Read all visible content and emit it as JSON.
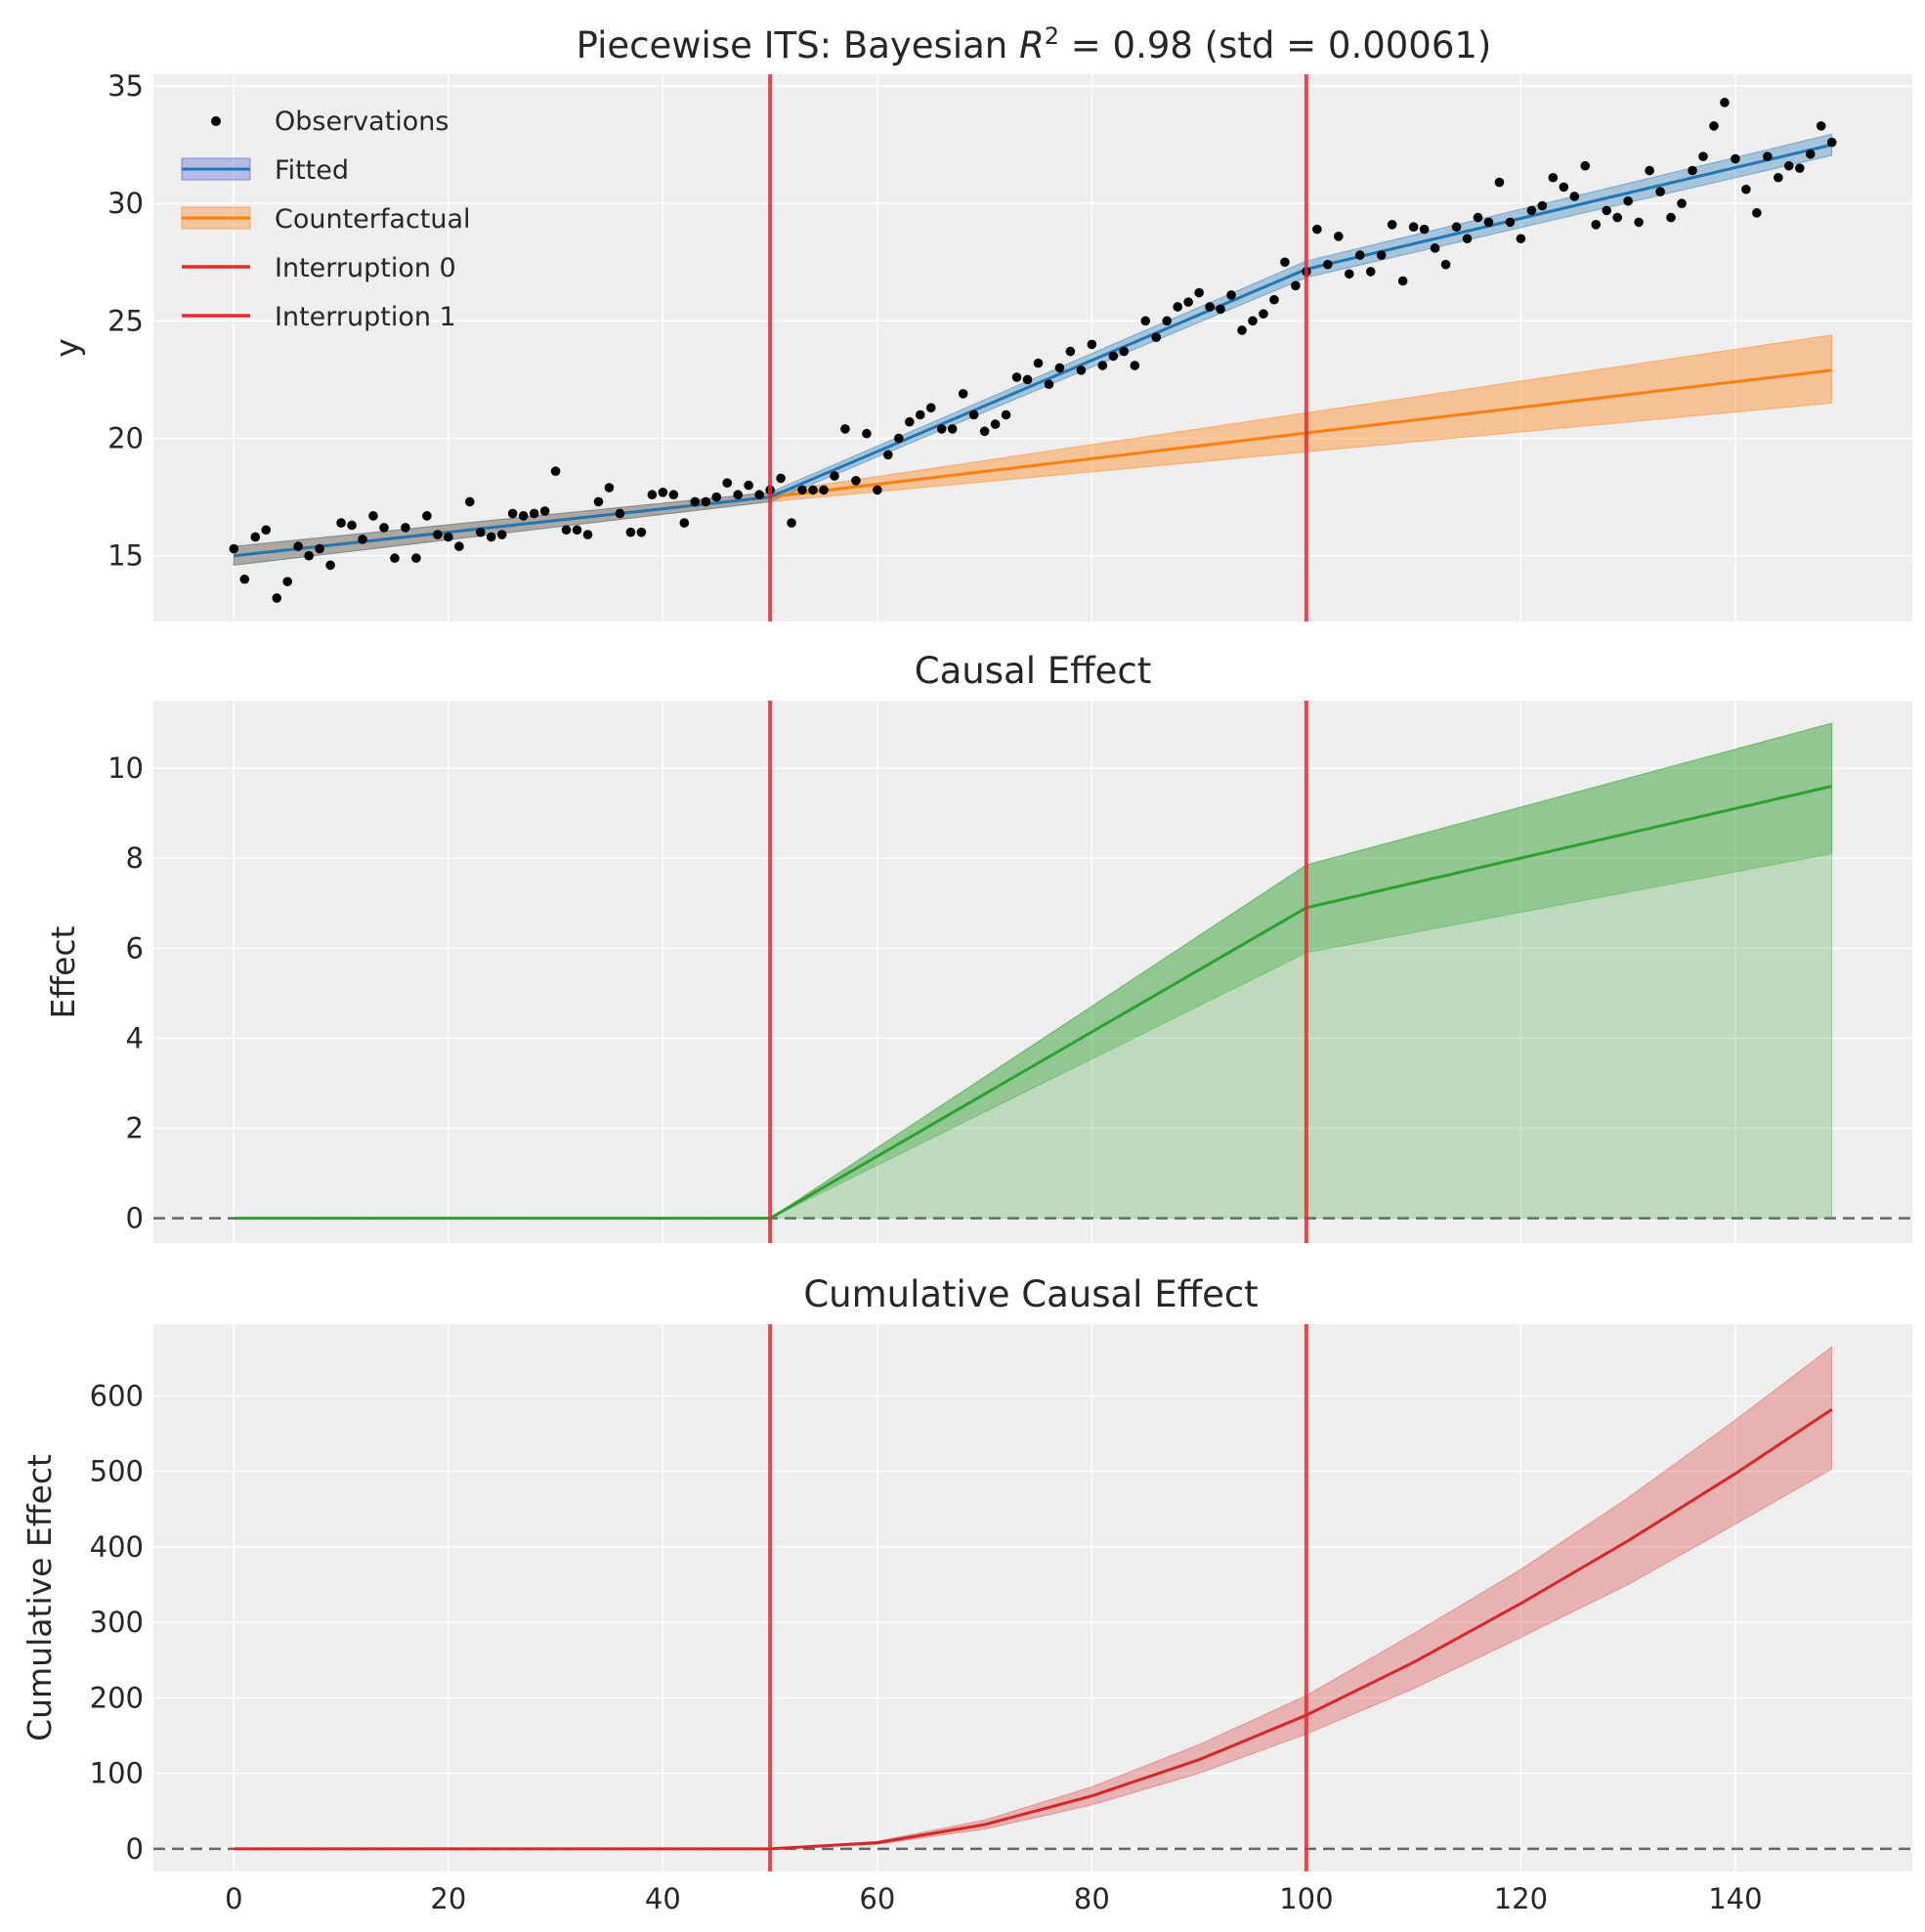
{
  "figure": {
    "colors": {
      "background": "#eeeeee",
      "grid": "#ffffff",
      "observations": "#000000",
      "fitted": "#1f77b4",
      "fitted_band_legend": "#4a5bd4",
      "counterfactual": "#ff7f0e",
      "interruption": "#e8282b",
      "effect": "#2ca02c",
      "cumulative": "#d62728",
      "zero_line": "#666666"
    }
  },
  "chart_data": [
    {
      "type": "scatter+line",
      "title_prefix": "Piecewise ITS: Bayesian ",
      "title_math_R": "R",
      "title_math_sup": "2",
      "title_suffix": " = 0.98 (std = 0.00061)",
      "xlabel": "",
      "ylabel": "y",
      "xlim": [
        -7.5,
        156.5
      ],
      "ylim": [
        12.2,
        35.5
      ],
      "yticks": [
        15,
        20,
        25,
        30,
        35
      ],
      "grid": true,
      "legend_position": "upper-left",
      "legend": [
        "Observations",
        "Fitted",
        "Counterfactual",
        "Interruption 0",
        "Interruption 1"
      ],
      "interruptions": [
        50,
        100
      ],
      "observations_y": [
        15.3,
        14.0,
        15.8,
        16.1,
        13.2,
        13.9,
        15.4,
        15.0,
        15.3,
        14.6,
        16.4,
        16.3,
        15.7,
        16.7,
        16.2,
        14.9,
        16.2,
        14.9,
        16.7,
        15.9,
        15.8,
        15.4,
        17.3,
        16.0,
        15.8,
        15.9,
        16.8,
        16.7,
        16.8,
        16.9,
        18.6,
        16.1,
        16.1,
        15.9,
        17.3,
        17.9,
        16.8,
        16.0,
        16.0,
        17.6,
        17.7,
        17.6,
        16.4,
        17.3,
        17.3,
        17.5,
        18.1,
        17.6,
        18.0,
        17.6,
        17.8,
        18.3,
        16.4,
        17.8,
        17.8,
        17.8,
        18.4,
        20.4,
        18.2,
        20.2,
        17.8,
        19.3,
        20.0,
        20.7,
        21.0,
        21.3,
        20.4,
        20.4,
        21.9,
        21.0,
        20.3,
        20.6,
        21.0,
        22.6,
        22.5,
        23.2,
        22.3,
        23.0,
        23.7,
        22.9,
        24.0,
        23.1,
        23.5,
        23.7,
        23.1,
        25.0,
        24.3,
        25.0,
        25.6,
        25.8,
        26.2,
        25.6,
        25.5,
        26.1,
        24.6,
        25.0,
        25.3,
        25.9,
        27.5,
        26.5,
        27.1,
        28.9,
        27.4,
        28.6,
        27.0,
        27.8,
        27.1,
        27.8,
        29.1,
        26.7,
        29.0,
        28.9,
        28.1,
        27.4,
        29.0,
        28.5,
        29.4,
        29.2,
        30.9,
        29.2,
        28.5,
        29.7,
        29.9,
        31.1,
        30.7,
        30.3,
        31.6,
        29.1,
        29.7,
        29.4,
        30.1,
        29.2,
        31.4,
        30.5,
        29.4,
        30.0,
        31.4,
        32.0,
        33.3,
        34.3,
        31.9,
        30.6,
        29.6,
        32.0,
        31.1,
        31.6,
        31.5,
        32.1,
        33.3,
        32.6
      ],
      "fitted": {
        "x": [
          0,
          50,
          100,
          149
        ],
        "y": [
          15.0,
          17.5,
          27.2,
          32.5
        ],
        "band_halfwidth": [
          0.4,
          0.2,
          0.35,
          0.45
        ]
      },
      "counterfactual": {
        "x": [
          0,
          50,
          149
        ],
        "y": [
          15.0,
          17.5,
          22.9
        ],
        "band_lower": [
          14.6,
          17.3,
          21.5
        ],
        "band_upper": [
          15.4,
          17.7,
          24.4
        ]
      }
    },
    {
      "type": "line+area",
      "title": "Causal Effect",
      "xlabel": "",
      "ylabel": "Effect",
      "xlim": [
        -7.5,
        156.5
      ],
      "ylim": [
        -0.55,
        11.5
      ],
      "yticks": [
        0,
        2,
        4,
        6,
        8,
        10
      ],
      "grid": true,
      "interruptions": [
        50,
        100
      ],
      "zero_line": 0,
      "effect_mean": {
        "x": [
          0,
          50,
          100,
          149
        ],
        "y": [
          0,
          0,
          6.9,
          9.6
        ]
      },
      "hdi_outer": {
        "x": [
          0,
          50,
          100,
          149
        ],
        "lower": [
          0,
          0,
          0,
          0
        ],
        "upper": [
          0,
          0,
          7.85,
          11.0
        ]
      },
      "hdi_inner": {
        "x": [
          0,
          50,
          100,
          149
        ],
        "lower": [
          0,
          0,
          5.9,
          8.1
        ],
        "upper": [
          0,
          0,
          7.85,
          11.0
        ]
      }
    },
    {
      "type": "line+area",
      "title": "Cumulative Causal Effect",
      "xlabel": "",
      "ylabel": "Cumulative Effect",
      "xlim": [
        -7.5,
        156.5
      ],
      "ylim": [
        -30,
        695
      ],
      "yticks": [
        0,
        100,
        200,
        300,
        400,
        500,
        600
      ],
      "xticks": [
        0,
        20,
        40,
        60,
        80,
        100,
        120,
        140
      ],
      "grid": true,
      "interruptions": [
        50,
        100
      ],
      "zero_line": 0,
      "cumulative_mean": {
        "x": [
          0,
          50,
          60,
          70,
          80,
          90,
          100,
          110,
          120,
          130,
          140,
          149
        ],
        "y": [
          0,
          0,
          8,
          32,
          70,
          118,
          177,
          247,
          325,
          408,
          497,
          582
        ]
      },
      "cumulative_band": {
        "x": [
          0,
          50,
          60,
          70,
          80,
          90,
          100,
          110,
          120,
          130,
          140,
          149
        ],
        "lower": [
          0,
          0,
          6,
          26,
          58,
          100,
          152,
          212,
          280,
          350,
          430,
          503
        ],
        "upper": [
          0,
          0,
          10,
          38,
          82,
          138,
          203,
          285,
          370,
          465,
          568,
          665
        ]
      }
    }
  ]
}
